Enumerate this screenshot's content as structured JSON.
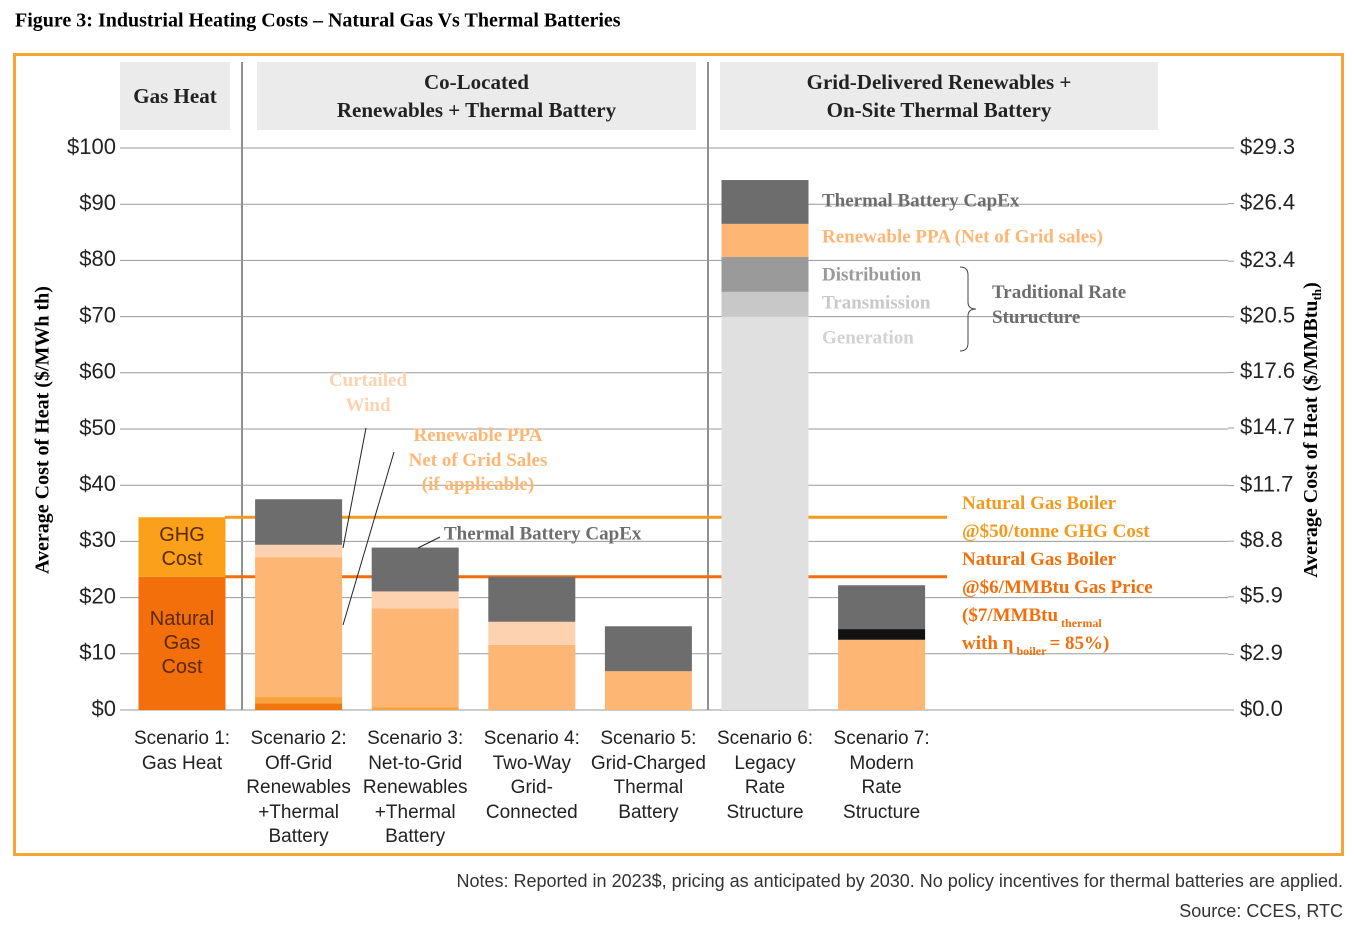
{
  "title": "Figure 3: Industrial Heating Costs – Natural Gas Vs Thermal Batteries",
  "chart_data": {
    "type": "bar",
    "stacked": true,
    "sections": [
      "Gas Heat",
      "Co-Located\nRenewables + Thermal Battery",
      "Grid-Delivered Renewables +\nOn-Site Thermal Battery"
    ],
    "categories": [
      "Scenario 1:\nGas Heat",
      "Scenario 2:\nOff-Grid\nRenewables\n+Thermal\nBattery",
      "Scenario 3:\nNet-to-Grid\nRenewables\n+Thermal\nBattery",
      "Scenario 4:\nTwo-Way\nGrid-\nConnected",
      "Scenario 5:\nGrid-Charged\nThermal\nBattery",
      "Scenario 6:\nLegacy\nRate\nStructure",
      "Scenario 7:\nModern\nRate\nStructure"
    ],
    "series": [
      {
        "name": "Natural\nGas\nCost",
        "color": "#f26f0c",
        "values": [
          23.7,
          null,
          null,
          null,
          null,
          null,
          null
        ]
      },
      {
        "name": "GHG\nCost",
        "color": "#fba01a",
        "values": [
          10.6,
          null,
          null,
          null,
          null,
          null,
          null
        ]
      },
      {
        "color": "#f2760e",
        "values": [
          null,
          1.2,
          null,
          null,
          null,
          null,
          null
        ]
      },
      {
        "color": "#f7a23c",
        "values": [
          null,
          1.1,
          0.5,
          null,
          null,
          null,
          null
        ]
      },
      {
        "name": "Generation",
        "color": "#e0e0e0",
        "values": [
          null,
          null,
          null,
          null,
          null,
          70,
          null
        ]
      },
      {
        "name": "Transmission",
        "color": "#c8c8c8",
        "values": [
          null,
          null,
          null,
          null,
          null,
          4.4,
          null
        ]
      },
      {
        "name": "Distribution",
        "color": "#9a9a9a",
        "values": [
          null,
          null,
          null,
          null,
          null,
          6.2,
          null
        ]
      },
      {
        "name": "Renewable PPA (Net of Grid sales)",
        "color": "#fdb674",
        "values": [
          null,
          24.9,
          17.6,
          11.6,
          6.9,
          5.9,
          12.5
        ]
      },
      {
        "color": "#111111",
        "values": [
          null,
          null,
          null,
          null,
          null,
          null,
          1.9
        ]
      },
      {
        "name": "Curtailed\nWind",
        "color": "#fdd2b0",
        "values": [
          null,
          2.2,
          3.0,
          4.1,
          null,
          null,
          null
        ]
      },
      {
        "name": "Thermal Battery CapEx",
        "color": "#6d6d6d",
        "values": [
          null,
          8.1,
          7.8,
          8.0,
          8.0,
          7.8,
          7.8
        ]
      }
    ],
    "ylabel": "Average Cost of Heat ($/MWh th)",
    "y2label": [
      "Average Cost of Heat ($/MMBtu",
      "th",
      ")"
    ],
    "ylim": [
      0,
      100
    ],
    "yticks": [
      {
        "value": 0,
        "label": "$0"
      },
      {
        "value": 10,
        "label": "$10"
      },
      {
        "value": 20,
        "label": "$20"
      },
      {
        "value": 30,
        "label": "$30"
      },
      {
        "value": 40,
        "label": "$40"
      },
      {
        "value": 50,
        "label": "$50"
      },
      {
        "value": 60,
        "label": "$60"
      },
      {
        "value": 70,
        "label": "$70"
      },
      {
        "value": 80,
        "label": "$80"
      },
      {
        "value": 90,
        "label": "$90"
      },
      {
        "value": 100,
        "label": "$100"
      }
    ],
    "y2lim": [
      0,
      29.3
    ],
    "y2ticks": [
      {
        "value": 0,
        "label": "$0.0"
      },
      {
        "value": 2.9,
        "label": "$2.9"
      },
      {
        "value": 5.9,
        "label": "$5.9"
      },
      {
        "value": 8.8,
        "label": "$8.8"
      },
      {
        "value": 11.7,
        "label": "$11.7"
      },
      {
        "value": 14.7,
        "label": "$14.7"
      },
      {
        "value": 17.6,
        "label": "$17.6"
      },
      {
        "value": 20.5,
        "label": "$20.5"
      },
      {
        "value": 23.4,
        "label": "$23.4"
      },
      {
        "value": 26.4,
        "label": "$26.4"
      },
      {
        "value": 29.3,
        "label": "$29.3"
      }
    ],
    "grid": true,
    "reference_lines": [
      {
        "value": 34.3,
        "color": "#f39a1e",
        "label": [
          [
            "Natural Gas Boiler"
          ],
          [
            "@$50/tonne GHG Cost"
          ]
        ]
      },
      {
        "value": 23.7,
        "color": "#f26f0c",
        "label": [
          [
            "Natural Gas Boiler"
          ],
          [
            "@$6/MMBtu Gas Price"
          ],
          [
            "($7/MMBtu",
            "thermal"
          ],
          [
            "with η",
            "boiler",
            "= 85%)"
          ]
        ]
      }
    ],
    "annotations": [
      "Renewable PPA\nNet of Grid Sales\n(if applicable)",
      "Traditional Rate\nSturucture"
    ]
  },
  "notes": "Notes: Reported in 2023$, pricing as anticipated by 2030. No policy incentives for thermal batteries are applied.",
  "source": "Source: CCES, RTC"
}
